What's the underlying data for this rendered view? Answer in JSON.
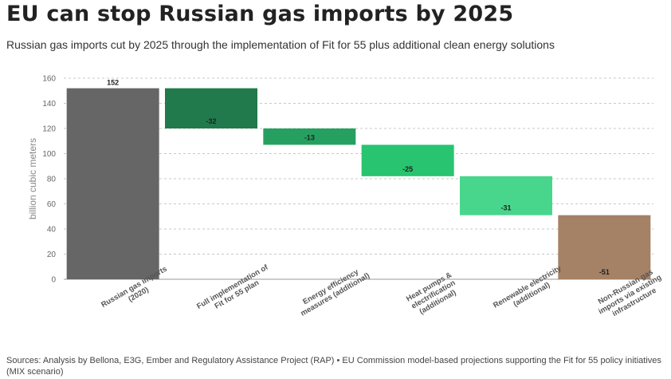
{
  "header": {
    "title": "EU can stop Russian gas imports by 2025",
    "subtitle": "Russian gas imports cut by 2025 through the implementation of Fit for 55 plus additional clean energy solutions"
  },
  "footer": {
    "source": "Sources: Analysis by Bellona, E3G, Ember and Regulatory Assistance Project (RAP) • EU Commission model-based projections supporting the Fit for 55 policy initiatives (MIX scenario)"
  },
  "chart_data": {
    "type": "bar",
    "subtype": "waterfall",
    "ylabel": "billion cubic meters",
    "ylim": [
      0,
      160
    ],
    "yticks": [
      0,
      20,
      40,
      60,
      80,
      100,
      120,
      140,
      160
    ],
    "grid": "horizontal dashed",
    "categories": [
      [
        "Russian gas imports",
        "(2020)"
      ],
      [
        "Full implementation of",
        "Fit for 55 plan"
      ],
      [
        "Energy efficiency",
        "measures (additional)"
      ],
      [
        "Heat pumps &",
        "electrification",
        "(additional)"
      ],
      [
        "Renewable electricity",
        "(additional)"
      ],
      [
        "Non-Russian gas",
        "imports via existing",
        "infrastructure"
      ]
    ],
    "bars": [
      {
        "start": 0,
        "end": 152,
        "label": "152",
        "color": "#666666"
      },
      {
        "start": 152,
        "end": 120,
        "label": "-32",
        "color": "#217a4b"
      },
      {
        "start": 120,
        "end": 107,
        "label": "-13",
        "color": "#26a060"
      },
      {
        "start": 107,
        "end": 82,
        "label": "-25",
        "color": "#28c46f"
      },
      {
        "start": 82,
        "end": 51,
        "label": "-31",
        "color": "#48d68c"
      },
      {
        "start": 51,
        "end": 0,
        "label": "-51",
        "color": "#a58166"
      }
    ]
  }
}
